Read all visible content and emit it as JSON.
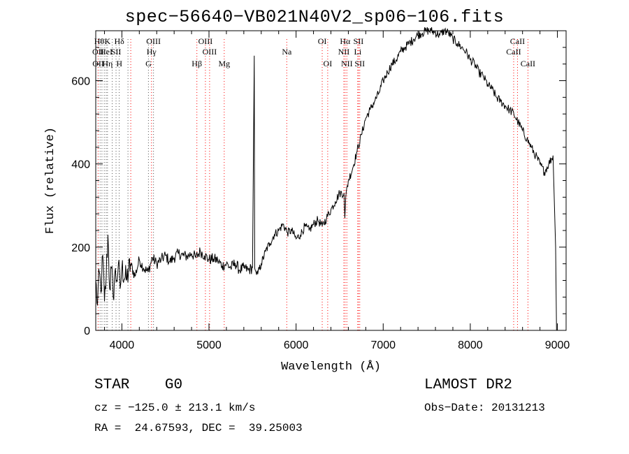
{
  "chart_data": {
    "type": "line",
    "title": "spec−56640−VB021N40V2_sp06−106.fits",
    "xlabel": "Wavelength (Å)",
    "ylabel": "Flux (relative)",
    "xlim": [
      3700,
      9100
    ],
    "ylim": [
      0,
      720
    ],
    "xticks": [
      4000,
      5000,
      6000,
      7000,
      8000,
      9000
    ],
    "yticks": [
      0,
      200,
      400,
      600
    ],
    "grid": false,
    "series": [
      {
        "x": [
          3700,
          3720,
          3740,
          3760,
          3780,
          3800,
          3820,
          3840,
          3860,
          3880,
          3900,
          3920,
          3940,
          3960,
          3980,
          4000,
          4050,
          4100,
          4150,
          4200,
          4250,
          4300,
          4350,
          4400,
          4450,
          4500,
          4550,
          4600,
          4650,
          4700,
          4750,
          4800,
          4850,
          4900,
          4950,
          5000,
          5050,
          5100,
          5150,
          5200,
          5250,
          5300,
          5350,
          5400,
          5450,
          5500,
          5520,
          5525,
          5530,
          5540,
          5560,
          5600,
          5650,
          5700,
          5750,
          5800,
          5850,
          5900,
          5950,
          6000,
          6050,
          6100,
          6150,
          6200,
          6250,
          6300,
          6350,
          6400,
          6450,
          6500,
          6550,
          6560,
          6570,
          6600,
          6650,
          6700,
          6750,
          6800,
          6850,
          6900,
          6950,
          7000,
          7050,
          7100,
          7150,
          7200,
          7250,
          7300,
          7350,
          7400,
          7450,
          7500,
          7550,
          7600,
          7650,
          7700,
          7750,
          7800,
          7850,
          7900,
          7950,
          8000,
          8050,
          8100,
          8150,
          8200,
          8250,
          8300,
          8350,
          8400,
          8450,
          8500,
          8550,
          8600,
          8650,
          8700,
          8750,
          8800,
          8850,
          8900,
          8950,
          8980,
          8990,
          9000
        ],
        "y": [
          120,
          60,
          140,
          90,
          180,
          70,
          130,
          230,
          100,
          150,
          80,
          140,
          120,
          160,
          100,
          150,
          120,
          160,
          130,
          170,
          150,
          140,
          175,
          160,
          170,
          180,
          165,
          175,
          185,
          180,
          178,
          185,
          175,
          190,
          180,
          170,
          172,
          168,
          155,
          160,
          150,
          162,
          145,
          150,
          145,
          150,
          660,
          150,
          145,
          140,
          135,
          160,
          190,
          210,
          230,
          240,
          255,
          235,
          240,
          220,
          230,
          250,
          240,
          255,
          265,
          250,
          270,
          290,
          310,
          330,
          330,
          270,
          320,
          360,
          390,
          430,
          470,
          510,
          530,
          550,
          570,
          600,
          620,
          640,
          650,
          670,
          680,
          690,
          700,
          710,
          715,
          720,
          720,
          715,
          710,
          720,
          715,
          700,
          690,
          680,
          670,
          650,
          640,
          620,
          610,
          590,
          580,
          560,
          550,
          540,
          530,
          520,
          500,
          480,
          460,
          440,
          420,
          400,
          380,
          400,
          420,
          200,
          0,
          0
        ]
      }
    ],
    "line_labels": [
      {
        "x": 3740,
        "row": 0,
        "text": "Hθ"
      },
      {
        "x": 3835,
        "row": 0,
        "text": "K"
      },
      {
        "x": 3970,
        "row": 0,
        "text": "Hδ"
      },
      {
        "x": 4363,
        "row": 0,
        "text": "OIII"
      },
      {
        "x": 4959,
        "row": 0,
        "text": "OIII"
      },
      {
        "x": 6300,
        "row": 0,
        "text": "OI"
      },
      {
        "x": 6563,
        "row": 0,
        "text": "Hα"
      },
      {
        "x": 6716,
        "row": 0,
        "text": "SII"
      },
      {
        "x": 8542,
        "row": 0,
        "text": "CaII"
      },
      {
        "x": 3727,
        "row": 1,
        "text": "OII"
      },
      {
        "x": 3820,
        "row": 1,
        "text": "HeI"
      },
      {
        "x": 3933,
        "row": 1,
        "text": "SII"
      },
      {
        "x": 4340,
        "row": 1,
        "text": "Hγ"
      },
      {
        "x": 5007,
        "row": 1,
        "text": "OIII"
      },
      {
        "x": 5893,
        "row": 1,
        "text": "Na"
      },
      {
        "x": 6548,
        "row": 1,
        "text": "NII"
      },
      {
        "x": 6708,
        "row": 1,
        "text": "Li"
      },
      {
        "x": 8498,
        "row": 1,
        "text": "CaII"
      },
      {
        "x": 3729,
        "row": 2,
        "text": "OII"
      },
      {
        "x": 3835,
        "row": 2,
        "text": "Hη"
      },
      {
        "x": 3970,
        "row": 2,
        "text": "H"
      },
      {
        "x": 4305,
        "row": 2,
        "text": "G"
      },
      {
        "x": 4861,
        "row": 2,
        "text": "Hβ"
      },
      {
        "x": 5175,
        "row": 2,
        "text": "Mg"
      },
      {
        "x": 6363,
        "row": 2,
        "text": "OI"
      },
      {
        "x": 6583,
        "row": 2,
        "text": "NII"
      },
      {
        "x": 6731,
        "row": 2,
        "text": "SII"
      },
      {
        "x": 8662,
        "row": 2,
        "text": "CaII"
      }
    ],
    "line_markers": [
      {
        "x": 3727,
        "color": "#ff0000"
      },
      {
        "x": 3750,
        "color": "#555555"
      },
      {
        "x": 3771,
        "color": "#555555"
      },
      {
        "x": 3798,
        "color": "#555555"
      },
      {
        "x": 3820,
        "color": "#555555"
      },
      {
        "x": 3835,
        "color": "#555555"
      },
      {
        "x": 3889,
        "color": "#555555"
      },
      {
        "x": 3933,
        "color": "#555555"
      },
      {
        "x": 3969,
        "color": "#555555"
      },
      {
        "x": 4070,
        "color": "#555555"
      },
      {
        "x": 4102,
        "color": "#ff0000"
      },
      {
        "x": 4305,
        "color": "#555555"
      },
      {
        "x": 4340,
        "color": "#ff0000"
      },
      {
        "x": 4363,
        "color": "#555555"
      },
      {
        "x": 4861,
        "color": "#ff0000"
      },
      {
        "x": 4959,
        "color": "#ff0000"
      },
      {
        "x": 5007,
        "color": "#ff0000"
      },
      {
        "x": 5175,
        "color": "#ff0000"
      },
      {
        "x": 5893,
        "color": "#ff0000"
      },
      {
        "x": 6300,
        "color": "#ff0000"
      },
      {
        "x": 6363,
        "color": "#ff0000"
      },
      {
        "x": 6548,
        "color": "#ff0000"
      },
      {
        "x": 6563,
        "color": "#ff0000"
      },
      {
        "x": 6583,
        "color": "#ff0000"
      },
      {
        "x": 6708,
        "color": "#ff0000"
      },
      {
        "x": 6716,
        "color": "#ff0000"
      },
      {
        "x": 6731,
        "color": "#ff0000"
      },
      {
        "x": 8498,
        "color": "#ff0000"
      },
      {
        "x": 8542,
        "color": "#ff0000"
      },
      {
        "x": 8662,
        "color": "#ff0000"
      }
    ],
    "colors": {
      "spectrum": "#000000",
      "axis": "#000000"
    }
  },
  "info": {
    "object_class": "STAR",
    "subclass": "G0",
    "survey": "LAMOST DR2",
    "cz": "cz = −125.0 ± 213.1 km/s",
    "obs_date": "Obs−Date: 20131213",
    "radec": "RA =  24.67593, DEC =  39.25003"
  }
}
